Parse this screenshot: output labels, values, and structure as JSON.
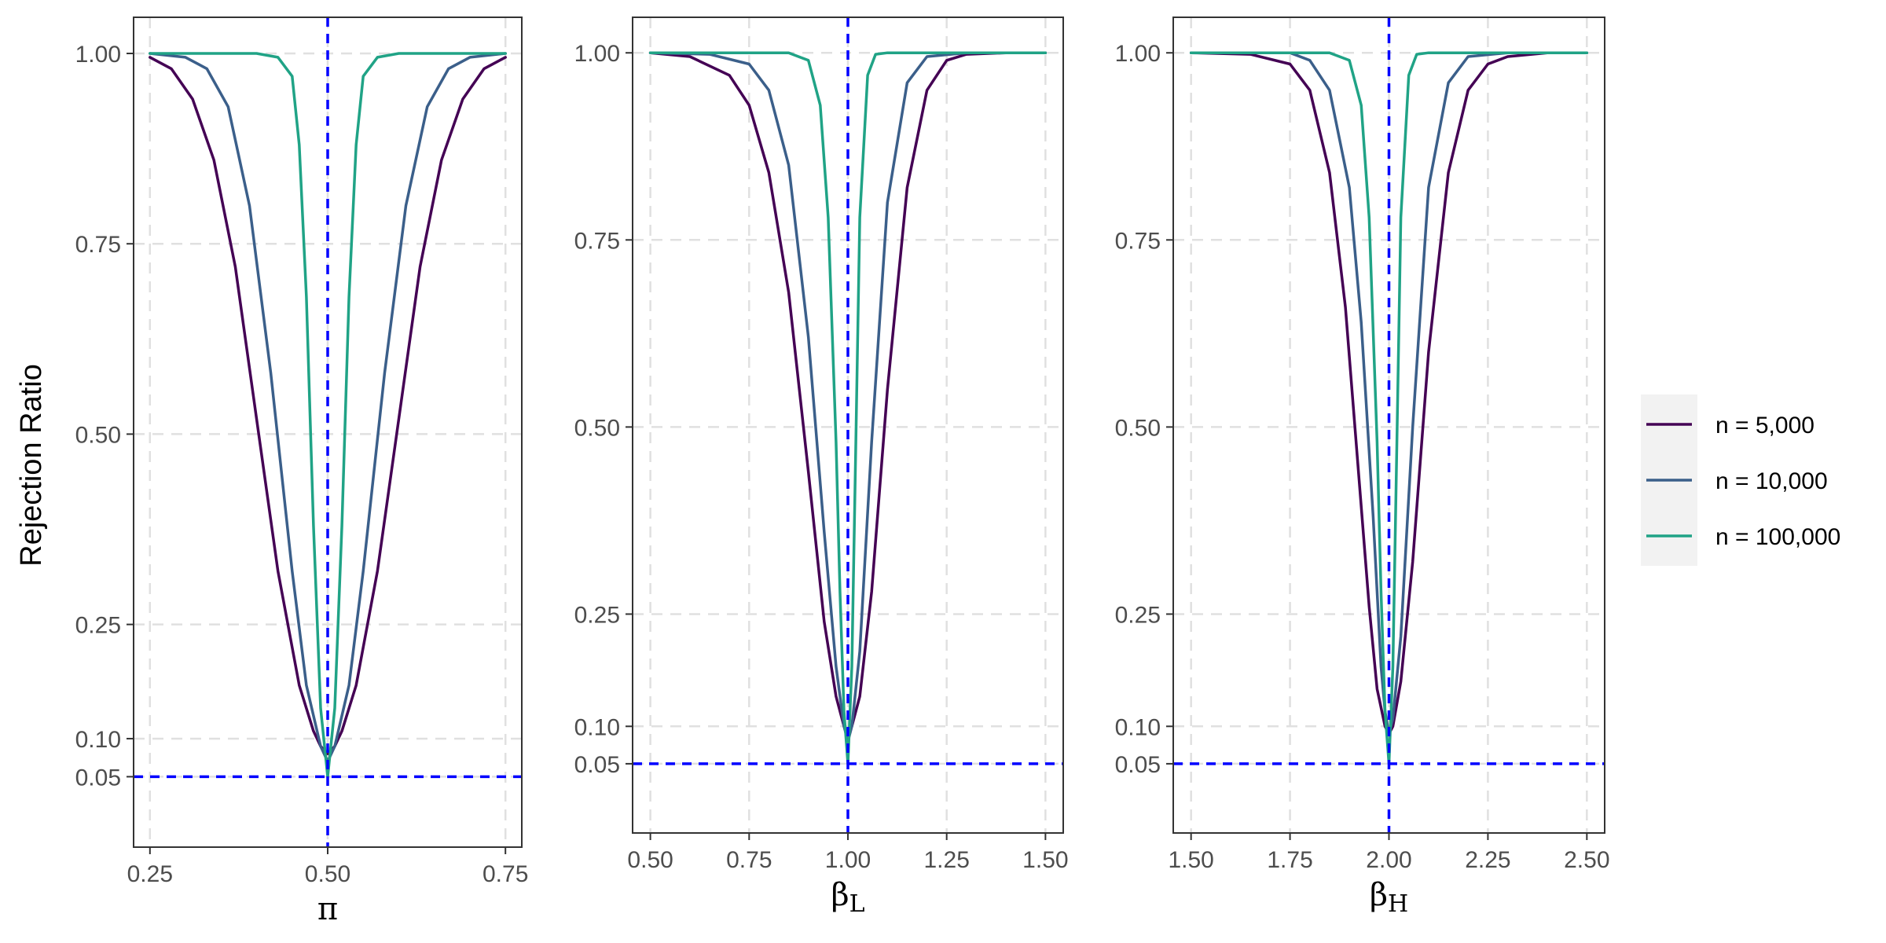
{
  "figure": {
    "ylabel": "Rejection Ratio",
    "colors": {
      "n_5000": "#440154",
      "n_10000": "#3b5f8a",
      "n_100000": "#20a386",
      "reference": "#0000ff",
      "grid": "#e0e0e0",
      "panel_border": "#333333"
    }
  },
  "legend": {
    "items": [
      {
        "label": "n = 5,000",
        "color": "#440154"
      },
      {
        "label": "n = 10,000",
        "color": "#3b5f8a"
      },
      {
        "label": "n = 100,000",
        "color": "#20a386"
      }
    ]
  },
  "chart_data": [
    {
      "type": "line",
      "xlabel": "π",
      "xlabel_sub": "",
      "ylabel": "Rejection Ratio",
      "xlim": [
        0.227,
        0.773
      ],
      "ylim": [
        -0.0425,
        1.0475
      ],
      "xticks": [
        0.25,
        0.5,
        0.75
      ],
      "xtick_labels": [
        "0.25",
        "0.50",
        "0.75"
      ],
      "yticks": [
        0.05,
        0.1,
        0.25,
        0.5,
        0.75,
        1.0
      ],
      "ytick_labels": [
        "0.05",
        "0.10",
        "0.25",
        "0.50",
        "0.75",
        "1.00"
      ],
      "true_value": 0.5,
      "nominal_level": 0.05,
      "grid": true,
      "series": [
        {
          "name": "n = 5,000",
          "color": "#440154",
          "x": [
            0.25,
            0.28,
            0.31,
            0.34,
            0.37,
            0.4,
            0.43,
            0.46,
            0.48,
            0.49,
            0.5,
            0.51,
            0.52,
            0.54,
            0.57,
            0.6,
            0.63,
            0.66,
            0.69,
            0.72,
            0.75
          ],
          "y": [
            0.995,
            0.98,
            0.94,
            0.86,
            0.72,
            0.52,
            0.32,
            0.17,
            0.11,
            0.09,
            0.08,
            0.09,
            0.11,
            0.17,
            0.32,
            0.52,
            0.72,
            0.86,
            0.94,
            0.98,
            0.995
          ]
        },
        {
          "name": "n = 10,000",
          "color": "#3b5f8a",
          "x": [
            0.25,
            0.3,
            0.33,
            0.36,
            0.39,
            0.42,
            0.45,
            0.47,
            0.49,
            0.5,
            0.51,
            0.53,
            0.55,
            0.58,
            0.61,
            0.64,
            0.67,
            0.7,
            0.75
          ],
          "y": [
            1.0,
            0.995,
            0.98,
            0.93,
            0.8,
            0.58,
            0.32,
            0.17,
            0.09,
            0.07,
            0.09,
            0.17,
            0.32,
            0.58,
            0.8,
            0.93,
            0.98,
            0.995,
            1.0
          ]
        },
        {
          "name": "n = 100,000",
          "color": "#20a386",
          "x": [
            0.25,
            0.4,
            0.43,
            0.45,
            0.46,
            0.47,
            0.48,
            0.49,
            0.5,
            0.51,
            0.52,
            0.53,
            0.54,
            0.55,
            0.57,
            0.6,
            0.75
          ],
          "y": [
            1.0,
            1.0,
            0.995,
            0.97,
            0.88,
            0.68,
            0.38,
            0.14,
            0.05,
            0.14,
            0.38,
            0.68,
            0.88,
            0.97,
            0.995,
            1.0,
            1.0
          ]
        }
      ]
    },
    {
      "type": "line",
      "xlabel": "β",
      "xlabel_sub": "L",
      "ylabel": "",
      "xlim": [
        0.455,
        1.545
      ],
      "ylim": [
        -0.0425,
        1.0475
      ],
      "xticks": [
        0.5,
        0.75,
        1.0,
        1.25,
        1.5
      ],
      "xtick_labels": [
        "0.50",
        "0.75",
        "1.00",
        "1.25",
        "1.50"
      ],
      "yticks": [
        0.05,
        0.1,
        0.25,
        0.5,
        0.75,
        1.0
      ],
      "ytick_labels": [
        "0.05",
        "0.10",
        "0.25",
        "0.50",
        "0.75",
        "1.00"
      ],
      "true_value": 1.0,
      "nominal_level": 0.05,
      "grid": true,
      "series": [
        {
          "name": "n = 5,000",
          "color": "#440154",
          "x": [
            0.5,
            0.6,
            0.7,
            0.75,
            0.8,
            0.85,
            0.9,
            0.94,
            0.97,
            0.99,
            1.0,
            1.01,
            1.03,
            1.06,
            1.1,
            1.15,
            1.2,
            1.25,
            1.3,
            1.4,
            1.5
          ],
          "y": [
            1.0,
            0.995,
            0.97,
            0.93,
            0.84,
            0.68,
            0.44,
            0.24,
            0.14,
            0.1,
            0.09,
            0.1,
            0.14,
            0.28,
            0.55,
            0.82,
            0.95,
            0.99,
            0.998,
            1.0,
            1.0
          ]
        },
        {
          "name": "n = 10,000",
          "color": "#3b5f8a",
          "x": [
            0.5,
            0.65,
            0.75,
            0.8,
            0.85,
            0.9,
            0.94,
            0.97,
            0.99,
            1.0,
            1.01,
            1.03,
            1.06,
            1.1,
            1.15,
            1.2,
            1.3,
            1.5
          ],
          "y": [
            1.0,
            0.998,
            0.985,
            0.95,
            0.85,
            0.62,
            0.36,
            0.18,
            0.1,
            0.08,
            0.1,
            0.2,
            0.48,
            0.8,
            0.96,
            0.995,
            1.0,
            1.0
          ]
        },
        {
          "name": "n = 100,000",
          "color": "#20a386",
          "x": [
            0.5,
            0.85,
            0.9,
            0.93,
            0.95,
            0.97,
            0.98,
            0.99,
            1.0,
            1.01,
            1.02,
            1.03,
            1.05,
            1.07,
            1.1,
            1.5
          ],
          "y": [
            1.0,
            1.0,
            0.99,
            0.93,
            0.78,
            0.48,
            0.28,
            0.12,
            0.05,
            0.18,
            0.48,
            0.78,
            0.97,
            0.998,
            1.0,
            1.0
          ]
        }
      ]
    },
    {
      "type": "line",
      "xlabel": "β",
      "xlabel_sub": "H",
      "ylabel": "",
      "xlim": [
        1.455,
        2.545
      ],
      "ylim": [
        -0.0425,
        1.0475
      ],
      "xticks": [
        1.5,
        1.75,
        2.0,
        2.25,
        2.5
      ],
      "xtick_labels": [
        "1.50",
        "1.75",
        "2.00",
        "2.25",
        "2.50"
      ],
      "yticks": [
        0.05,
        0.1,
        0.25,
        0.5,
        0.75,
        1.0
      ],
      "ytick_labels": [
        "0.05",
        "0.10",
        "0.25",
        "0.50",
        "0.75",
        "1.00"
      ],
      "true_value": 2.0,
      "nominal_level": 0.05,
      "grid": true,
      "series": [
        {
          "name": "n = 5,000",
          "color": "#440154",
          "x": [
            1.5,
            1.65,
            1.75,
            1.8,
            1.85,
            1.89,
            1.92,
            1.95,
            1.97,
            1.99,
            2.0,
            2.01,
            2.03,
            2.06,
            2.1,
            2.15,
            2.2,
            2.25,
            2.3,
            2.4,
            2.5
          ],
          "y": [
            1.0,
            0.998,
            0.985,
            0.95,
            0.84,
            0.66,
            0.46,
            0.26,
            0.15,
            0.1,
            0.09,
            0.1,
            0.16,
            0.32,
            0.6,
            0.84,
            0.95,
            0.985,
            0.995,
            1.0,
            1.0
          ]
        },
        {
          "name": "n = 10,000",
          "color": "#3b5f8a",
          "x": [
            1.5,
            1.75,
            1.8,
            1.85,
            1.9,
            1.93,
            1.96,
            1.98,
            1.99,
            2.0,
            2.01,
            2.03,
            2.06,
            2.1,
            2.15,
            2.2,
            2.3,
            2.5
          ],
          "y": [
            1.0,
            1.0,
            0.99,
            0.95,
            0.82,
            0.64,
            0.38,
            0.18,
            0.12,
            0.09,
            0.11,
            0.22,
            0.5,
            0.82,
            0.96,
            0.995,
            1.0,
            1.0
          ]
        },
        {
          "name": "n = 100,000",
          "color": "#20a386",
          "x": [
            1.5,
            1.85,
            1.9,
            1.93,
            1.95,
            1.97,
            1.98,
            1.99,
            2.0,
            2.01,
            2.02,
            2.03,
            2.05,
            2.07,
            2.1,
            2.5
          ],
          "y": [
            1.0,
            1.0,
            0.99,
            0.93,
            0.78,
            0.48,
            0.28,
            0.12,
            0.05,
            0.18,
            0.48,
            0.78,
            0.97,
            0.998,
            1.0,
            1.0
          ]
        }
      ]
    }
  ]
}
